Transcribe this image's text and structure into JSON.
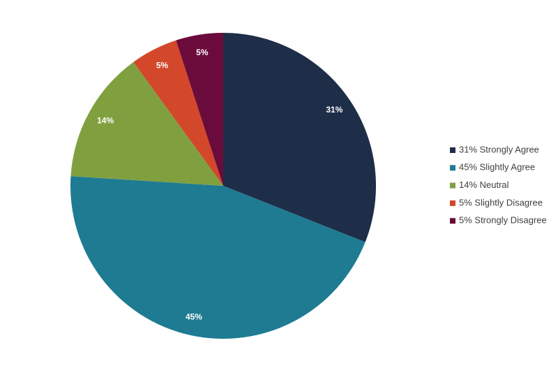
{
  "chart_data": {
    "type": "pie",
    "categories": [
      "31% Strongly Agree",
      "45% Slightly Agree",
      "14% Neutral",
      "5% Slightly Disagree",
      "5% Strongly Disagree"
    ],
    "values": [
      31,
      45,
      14,
      5,
      5
    ],
    "value_labels": [
      "31%",
      "45%",
      "14%",
      "5%",
      "5%"
    ],
    "colors": [
      "#1e2d48",
      "#1e7b92",
      "#80a040",
      "#d3472a",
      "#6a0b3b"
    ],
    "legend": "right"
  }
}
